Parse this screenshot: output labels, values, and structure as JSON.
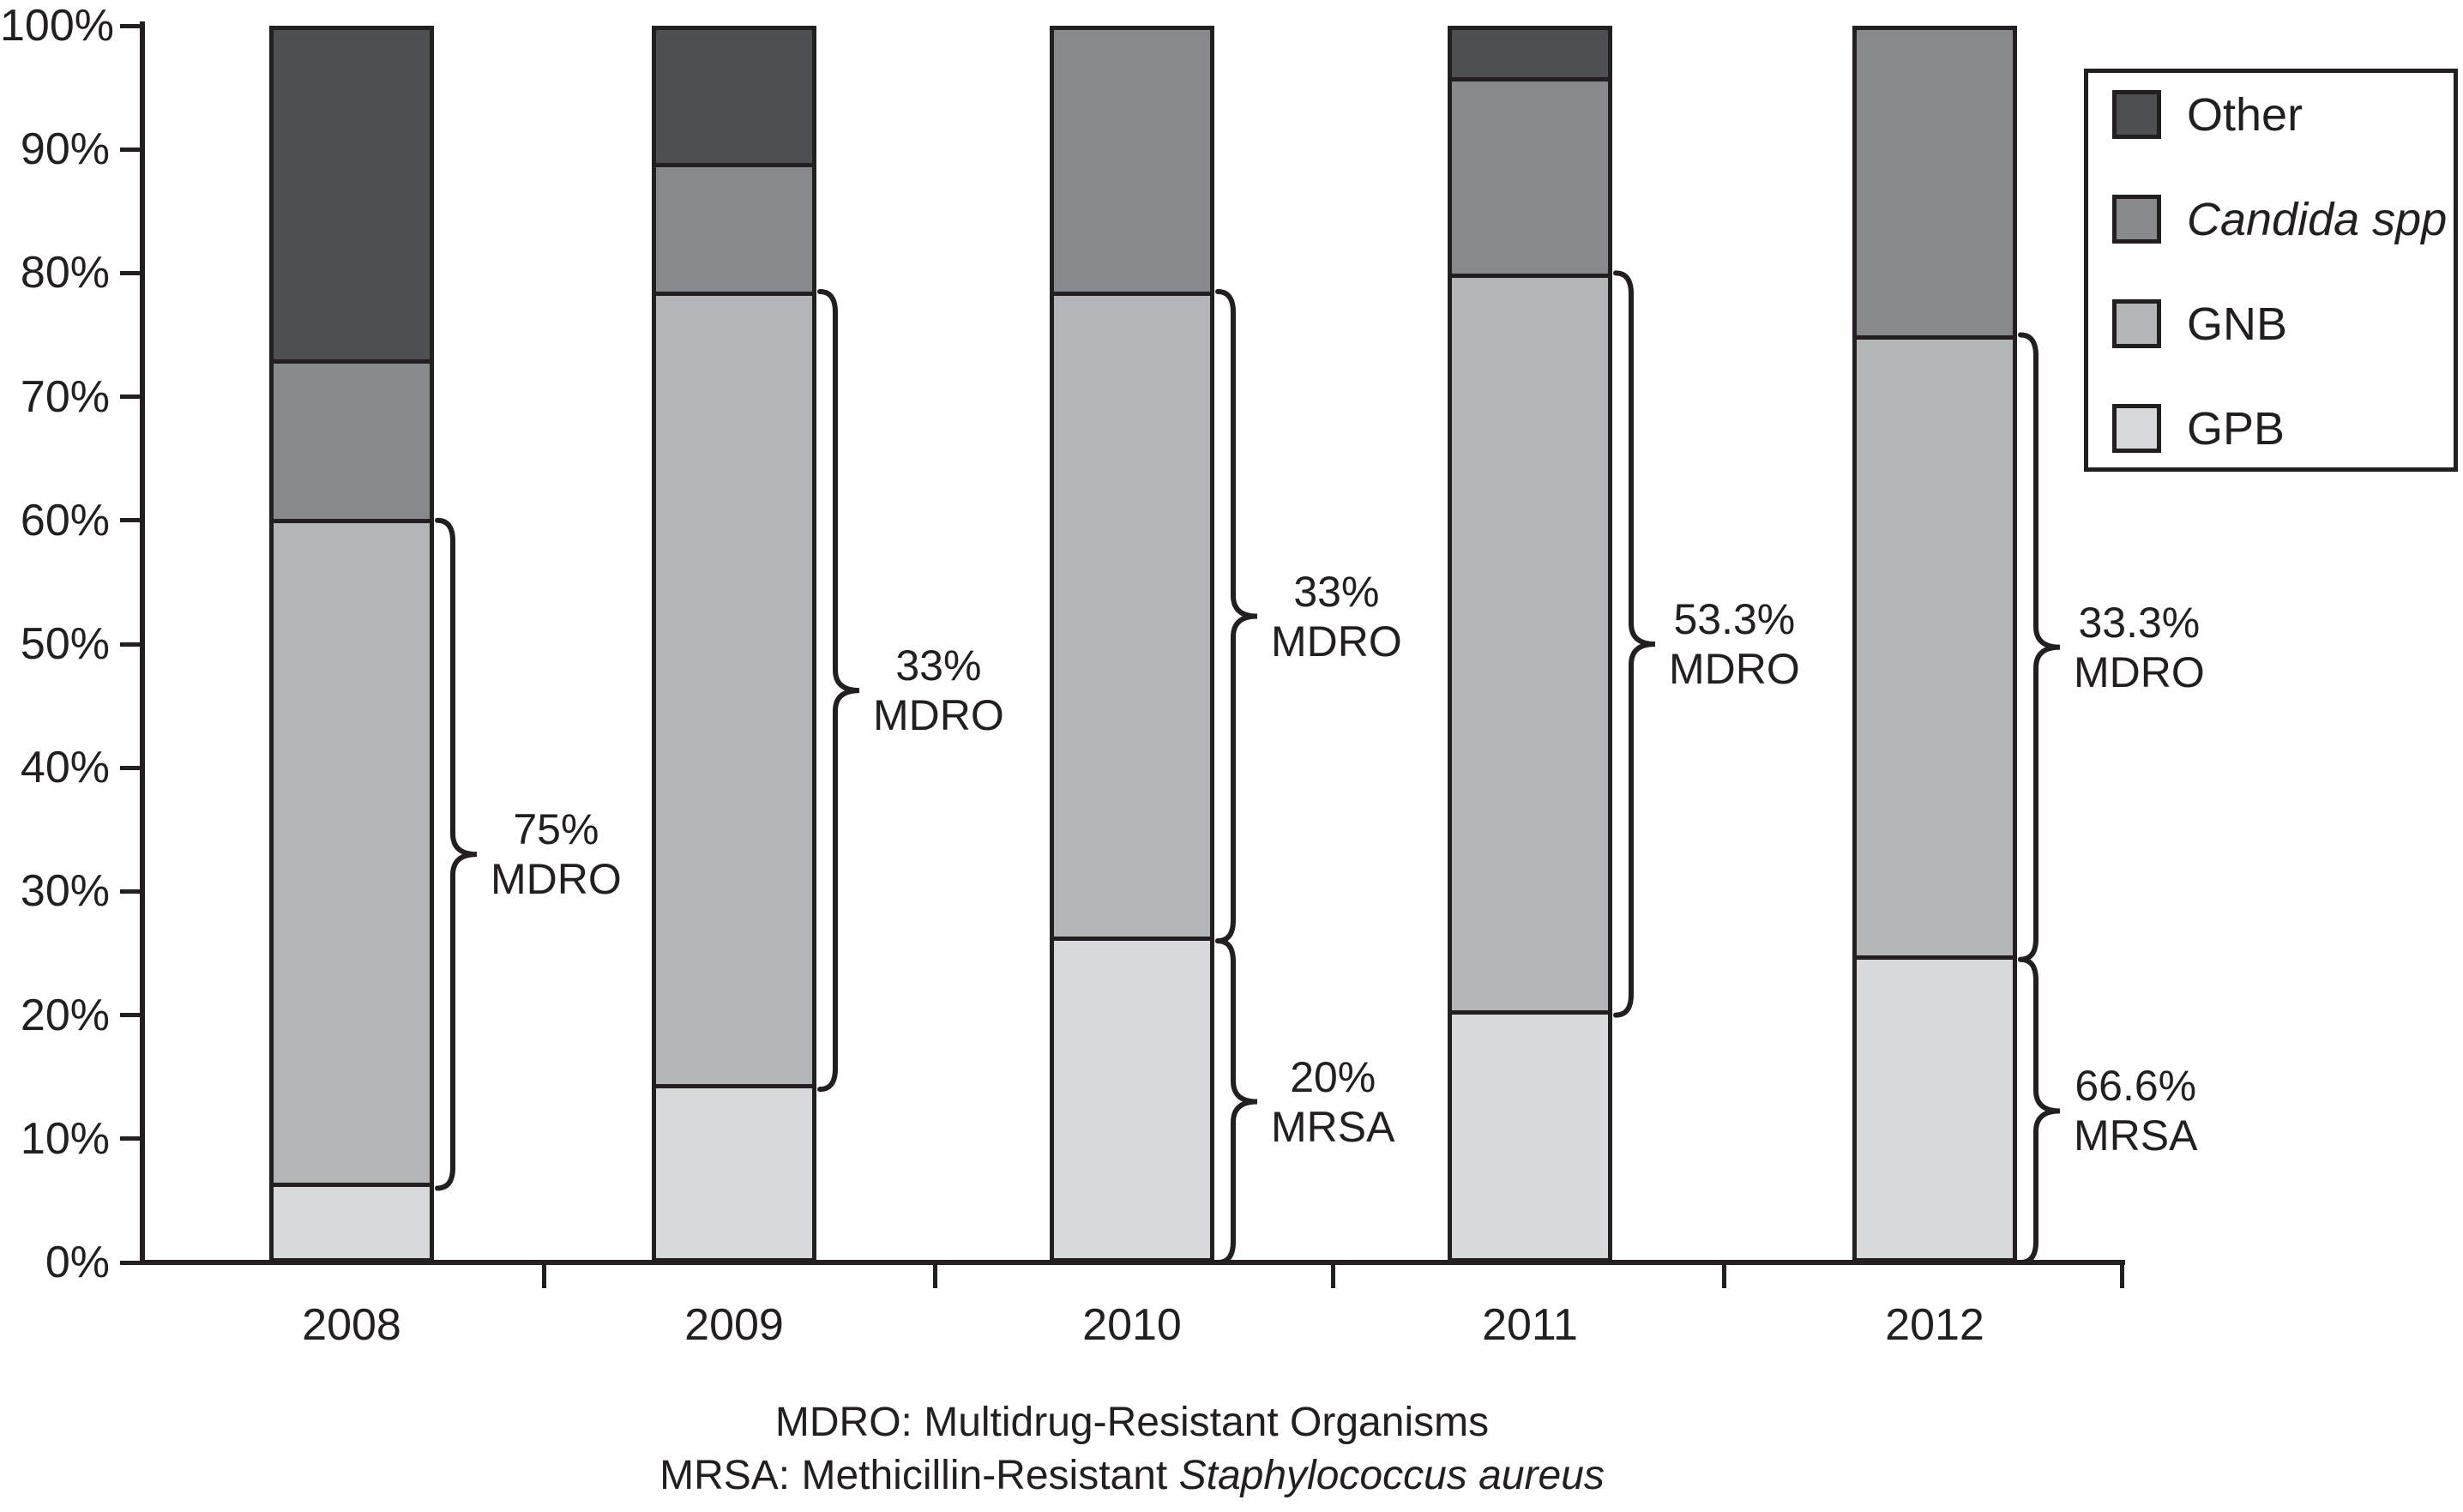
{
  "figure": {
    "footnote_line1": "MDRO: Multidrug-Resistant Organisms",
    "footnote_line2_prefix": "MRSA: Methicillin-Resistant ",
    "footnote_line2_italic": "Staphylococcus aureus"
  },
  "chart_data": {
    "type": "bar",
    "stacked": true,
    "orientation": "vertical",
    "categories": [
      "2008",
      "2009",
      "2010",
      "2011",
      "2012"
    ],
    "series": [
      {
        "name": "GPB",
        "color": "#d8d9da",
        "italic": false,
        "values": [
          6,
          14,
          26,
          20,
          24.5
        ]
      },
      {
        "name": "GNB",
        "color": "#b3b5b7",
        "italic": false,
        "values": [
          54,
          64.5,
          52.5,
          60,
          50.5
        ]
      },
      {
        "name": "Candida spp",
        "color": "#87898c",
        "italic": true,
        "values": [
          13,
          10.5,
          21.5,
          16,
          25
        ]
      },
      {
        "name": "Other",
        "color": "#4d4f52",
        "italic": false,
        "values": [
          27,
          11,
          0,
          4,
          0
        ]
      }
    ],
    "stack_order_bottom_to_top": [
      "GPB",
      "GNB",
      "Candida spp",
      "Other"
    ],
    "y_ticks": [
      "0%",
      "10%",
      "20%",
      "30%",
      "40%",
      "50%",
      "60%",
      "70%",
      "80%",
      "90%",
      "100%"
    ],
    "ylim": [
      0,
      100
    ],
    "grid": false,
    "legend_position": "top-right",
    "legend_order": [
      "Other",
      "Candida spp",
      "GNB",
      "GPB"
    ],
    "annotations": [
      {
        "category": "2008",
        "line1": "75%",
        "line2": "MDRO",
        "span_from_pct": 6,
        "span_to_pct": 60
      },
      {
        "category": "2009",
        "line1": "33%",
        "line2": "MDRO",
        "span_from_pct": 14,
        "span_to_pct": 78.5
      },
      {
        "category": "2010",
        "line1": "33%",
        "line2": "MDRO",
        "span_from_pct": 26,
        "span_to_pct": 78.5
      },
      {
        "category": "2010",
        "line1": "20%",
        "line2": "MRSA",
        "span_from_pct": 0,
        "span_to_pct": 26
      },
      {
        "category": "2011",
        "line1": "53.3%",
        "line2": "MDRO",
        "span_from_pct": 20,
        "span_to_pct": 80
      },
      {
        "category": "2012",
        "line1": "33.3%",
        "line2": "MDRO",
        "span_from_pct": 24.5,
        "span_to_pct": 75
      },
      {
        "category": "2012",
        "line1": "66.6%",
        "line2": "MRSA",
        "span_from_pct": 0,
        "span_to_pct": 24.5
      }
    ]
  }
}
